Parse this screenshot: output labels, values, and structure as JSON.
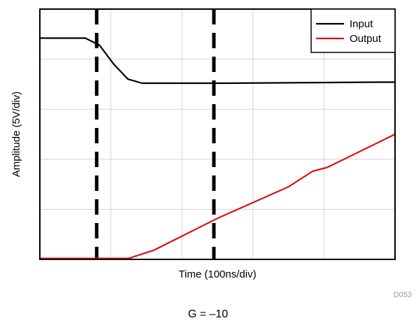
{
  "chart_data": {
    "type": "line",
    "title": "",
    "xlabel": "Time (100ns/div)",
    "ylabel": "Amplitude (5V/div)",
    "xlim": [
      0,
      5
    ],
    "ylim": [
      0,
      5
    ],
    "grid": true,
    "legend_position": "top-right",
    "series": [
      {
        "name": "Input",
        "color": "#000000",
        "x": [
          0,
          0.64,
          0.84,
          1.04,
          1.24,
          1.44,
          2.6,
          4.8,
          5.0
        ],
        "y": [
          4.42,
          4.42,
          4.28,
          3.9,
          3.6,
          3.52,
          3.52,
          3.54,
          3.54
        ]
      },
      {
        "name": "Output",
        "color": "#e01010",
        "x": [
          0,
          1.25,
          1.6,
          2.5,
          3.5,
          3.84,
          4.05,
          5.0
        ],
        "y": [
          0.02,
          0.02,
          0.18,
          0.82,
          1.45,
          1.76,
          1.84,
          2.5
        ]
      }
    ],
    "markers": [
      0.8,
      2.45
    ]
  },
  "figure_code": "D053",
  "caption": "G = –10"
}
